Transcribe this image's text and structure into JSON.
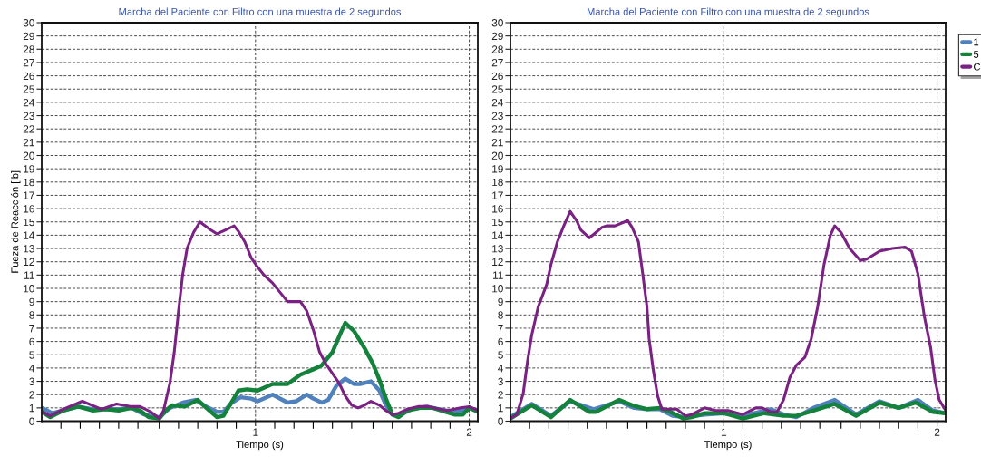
{
  "chart_data": [
    {
      "type": "line",
      "title": "Marcha del Paciente con Filtro con una muestra de 2 segundos",
      "xlabel": "Tiempo (s)",
      "ylabel": "Fueza de Reacción [lb]",
      "xlim": [
        0,
        2.04
      ],
      "ylim": [
        0,
        30
      ],
      "xticks": [
        {
          "value": 0.09,
          "label": null
        },
        {
          "value": 0.18,
          "label": null
        },
        {
          "value": 0.27,
          "label": null
        },
        {
          "value": 0.36,
          "label": null
        },
        {
          "value": 0.45,
          "label": null
        },
        {
          "value": 0.55,
          "label": null
        },
        {
          "value": 0.64,
          "label": null
        },
        {
          "value": 0.73,
          "label": null
        },
        {
          "value": 0.82,
          "label": null
        },
        {
          "value": 0.91,
          "label": null
        },
        1,
        {
          "value": 1.09,
          "label": null
        },
        {
          "value": 1.18,
          "label": null
        },
        {
          "value": 1.27,
          "label": null
        },
        {
          "value": 1.36,
          "label": null
        },
        {
          "value": 1.45,
          "label": null
        },
        {
          "value": 1.55,
          "label": null
        },
        {
          "value": 1.64,
          "label": null
        },
        {
          "value": 1.73,
          "label": null
        },
        {
          "value": 1.82,
          "label": null
        },
        {
          "value": 1.91,
          "label": null
        },
        2
      ],
      "yticks": [
        0,
        1,
        2,
        3,
        4,
        5,
        6,
        7,
        8,
        9,
        10,
        11,
        12,
        13,
        14,
        15,
        16,
        17,
        18,
        19,
        20,
        21,
        22,
        23,
        24,
        25,
        26,
        27,
        28,
        29,
        30
      ],
      "grid": true,
      "legend": false,
      "marker": "none",
      "line_style": "solid",
      "series": [
        {
          "color": "#4f81bd",
          "x": [
            0.0,
            0.05,
            0.1,
            0.17,
            0.24,
            0.36,
            0.42,
            0.48,
            0.55,
            0.6,
            0.66,
            0.72,
            0.77,
            0.82,
            0.85,
            0.89,
            0.93,
            0.98,
            1.01,
            1.08,
            1.15,
            1.19,
            1.24,
            1.27,
            1.31,
            1.34,
            1.38,
            1.42,
            1.46,
            1.49,
            1.54,
            1.58,
            1.61,
            1.64,
            1.67,
            1.73,
            1.8,
            1.86,
            1.92,
            1.97,
            2.0,
            2.04
          ],
          "values": [
            1.0,
            0.6,
            0.8,
            1.1,
            0.9,
            0.9,
            1.0,
            0.5,
            0.3,
            1.0,
            1.4,
            1.6,
            1.1,
            0.7,
            0.7,
            1.4,
            1.8,
            1.7,
            1.5,
            2.0,
            1.4,
            1.5,
            2.0,
            1.7,
            1.4,
            1.6,
            2.7,
            3.2,
            2.8,
            2.8,
            3.0,
            2.3,
            1.2,
            0.5,
            0.4,
            0.9,
            1.1,
            0.9,
            0.7,
            0.8,
            1.0,
            0.8
          ]
        },
        {
          "color": "#13823a",
          "x": [
            0.0,
            0.04,
            0.1,
            0.17,
            0.24,
            0.3,
            0.36,
            0.42,
            0.46,
            0.5,
            0.55,
            0.58,
            0.61,
            0.67,
            0.73,
            0.77,
            0.82,
            0.85,
            0.88,
            0.92,
            0.96,
            1.01,
            1.08,
            1.15,
            1.21,
            1.27,
            1.31,
            1.36,
            1.4,
            1.42,
            1.46,
            1.51,
            1.55,
            1.58,
            1.61,
            1.64,
            1.67,
            1.71,
            1.77,
            1.83,
            1.87,
            1.93,
            1.97,
            2.0,
            2.04
          ],
          "values": [
            0.7,
            0.3,
            0.8,
            1.1,
            0.8,
            0.9,
            0.8,
            1.0,
            0.8,
            0.3,
            0.2,
            0.8,
            1.2,
            1.1,
            1.6,
            1.0,
            0.3,
            0.4,
            1.2,
            2.3,
            2.4,
            2.3,
            2.8,
            2.8,
            3.5,
            3.9,
            4.2,
            5.2,
            6.7,
            7.4,
            6.8,
            5.5,
            4.3,
            3.1,
            1.7,
            0.5,
            0.3,
            0.8,
            1.0,
            1.0,
            0.8,
            0.5,
            0.5,
            1.0,
            0.7
          ]
        },
        {
          "color": "#7a2183",
          "x": [
            0.0,
            0.04,
            0.1,
            0.19,
            0.28,
            0.35,
            0.42,
            0.46,
            0.51,
            0.55,
            0.57,
            0.6,
            0.62,
            0.64,
            0.66,
            0.68,
            0.71,
            0.74,
            0.79,
            0.82,
            0.86,
            0.9,
            0.92,
            0.95,
            0.98,
            1.01,
            1.04,
            1.08,
            1.12,
            1.15,
            1.21,
            1.24,
            1.27,
            1.3,
            1.33,
            1.36,
            1.39,
            1.42,
            1.45,
            1.48,
            1.51,
            1.54,
            1.58,
            1.61,
            1.64,
            1.67,
            1.71,
            1.76,
            1.81,
            1.86,
            1.9,
            1.96,
            2.0,
            2.04
          ],
          "values": [
            0.7,
            0.4,
            0.9,
            1.5,
            0.9,
            1.3,
            1.1,
            1.1,
            0.7,
            0.2,
            0.8,
            2.9,
            5.2,
            8.3,
            11.1,
            13.0,
            14.2,
            15.0,
            14.4,
            14.1,
            14.4,
            14.7,
            14.3,
            13.5,
            12.3,
            11.6,
            11.0,
            10.4,
            9.6,
            9.0,
            9.0,
            8.3,
            6.9,
            5.2,
            4.3,
            3.6,
            2.9,
            1.9,
            1.2,
            1.0,
            1.2,
            1.5,
            1.2,
            0.8,
            0.5,
            0.6,
            0.9,
            1.1,
            1.1,
            0.9,
            0.8,
            1.0,
            1.1,
            0.8
          ]
        }
      ]
    },
    {
      "type": "line",
      "title": "Marcha del Paciente con Filtro con una muestra de 2 segundos",
      "xlabel": "Tiempo (s)",
      "xlim": [
        0,
        2.04
      ],
      "ylim": [
        0,
        30
      ],
      "xticks": [
        {
          "value": 0.09,
          "label": null
        },
        {
          "value": 0.18,
          "label": null
        },
        {
          "value": 0.27,
          "label": null
        },
        {
          "value": 0.36,
          "label": null
        },
        {
          "value": 0.45,
          "label": null
        },
        {
          "value": 0.55,
          "label": null
        },
        {
          "value": 0.64,
          "label": null
        },
        {
          "value": 0.73,
          "label": null
        },
        {
          "value": 0.82,
          "label": null
        },
        {
          "value": 0.91,
          "label": null
        },
        1,
        {
          "value": 1.09,
          "label": null
        },
        {
          "value": 1.18,
          "label": null
        },
        {
          "value": 1.27,
          "label": null
        },
        {
          "value": 1.36,
          "label": null
        },
        {
          "value": 1.45,
          "label": null
        },
        {
          "value": 1.55,
          "label": null
        },
        {
          "value": 1.64,
          "label": null
        },
        {
          "value": 1.73,
          "label": null
        },
        {
          "value": 1.82,
          "label": null
        },
        {
          "value": 1.91,
          "label": null
        },
        2
      ],
      "yticks": [
        0,
        1,
        2,
        3,
        4,
        5,
        6,
        7,
        8,
        9,
        10,
        11,
        12,
        13,
        14,
        15,
        16,
        17,
        18,
        19,
        20,
        21,
        22,
        23,
        24,
        25,
        26,
        27,
        28,
        29,
        30
      ],
      "grid": true,
      "legend": "top right",
      "marker": "none",
      "line_style": "solid",
      "series": [
        {
          "name": "1",
          "color": "#4f81bd",
          "x": [
            0.0,
            0.1,
            0.19,
            0.28,
            0.39,
            0.51,
            0.58,
            0.64,
            0.7,
            0.76,
            0.82,
            0.91,
            1.0,
            1.09,
            1.22,
            1.28,
            1.34,
            1.42,
            1.52,
            1.62,
            1.73,
            1.82,
            1.91,
            1.98,
            2.04
          ],
          "values": [
            0.3,
            1.3,
            0.4,
            1.5,
            0.9,
            1.5,
            1.0,
            0.9,
            0.9,
            0.4,
            0.3,
            0.5,
            0.6,
            0.4,
            0.9,
            0.5,
            0.3,
            1.0,
            1.6,
            0.5,
            1.5,
            1.0,
            1.6,
            0.8,
            0.6
          ]
        },
        {
          "name": "5",
          "color": "#13823a",
          "x": [
            0.0,
            0.03,
            0.1,
            0.19,
            0.28,
            0.37,
            0.4,
            0.51,
            0.57,
            0.64,
            0.7,
            0.75,
            0.81,
            0.85,
            0.91,
            1.0,
            1.09,
            1.19,
            1.28,
            1.34,
            1.42,
            1.52,
            1.62,
            1.73,
            1.82,
            1.9,
            1.98,
            2.04
          ],
          "values": [
            0.2,
            0.5,
            1.2,
            0.3,
            1.6,
            0.7,
            0.7,
            1.6,
            1.2,
            0.9,
            1.0,
            0.7,
            0.2,
            0.3,
            0.6,
            0.6,
            0.2,
            0.6,
            0.4,
            0.4,
            0.8,
            1.3,
            0.4,
            1.4,
            1.0,
            1.4,
            0.7,
            0.6
          ]
        },
        {
          "name": "C",
          "color": "#7a2183",
          "x": [
            0.0,
            0.03,
            0.06,
            0.08,
            0.1,
            0.13,
            0.17,
            0.19,
            0.22,
            0.25,
            0.28,
            0.31,
            0.33,
            0.37,
            0.4,
            0.43,
            0.45,
            0.49,
            0.55,
            0.57,
            0.6,
            0.62,
            0.64,
            0.65,
            0.67,
            0.69,
            0.71,
            0.75,
            0.78,
            0.82,
            0.85,
            0.91,
            0.96,
            1.02,
            1.09,
            1.15,
            1.18,
            1.22,
            1.25,
            1.28,
            1.31,
            1.34,
            1.38,
            1.41,
            1.44,
            1.47,
            1.5,
            1.52,
            1.55,
            1.59,
            1.64,
            1.67,
            1.73,
            1.79,
            1.85,
            1.88,
            1.91,
            1.94,
            1.97,
            1.99,
            2.01,
            2.04
          ],
          "values": [
            0.2,
            0.5,
            2.1,
            4.5,
            6.5,
            8.6,
            10.3,
            11.8,
            13.5,
            14.7,
            15.8,
            15.1,
            14.4,
            13.8,
            14.2,
            14.6,
            14.7,
            14.7,
            15.1,
            14.6,
            13.5,
            11.1,
            8.6,
            6.2,
            3.8,
            1.9,
            0.9,
            0.9,
            0.9,
            0.4,
            0.5,
            1.0,
            0.8,
            0.8,
            0.5,
            1.0,
            1.0,
            0.7,
            0.7,
            1.6,
            3.3,
            4.2,
            4.8,
            6.2,
            8.6,
            11.8,
            14.0,
            14.7,
            14.2,
            13.0,
            12.1,
            12.2,
            12.8,
            13.0,
            13.1,
            12.8,
            11.1,
            7.9,
            5.5,
            3.1,
            1.6,
            0.8
          ]
        }
      ]
    }
  ]
}
